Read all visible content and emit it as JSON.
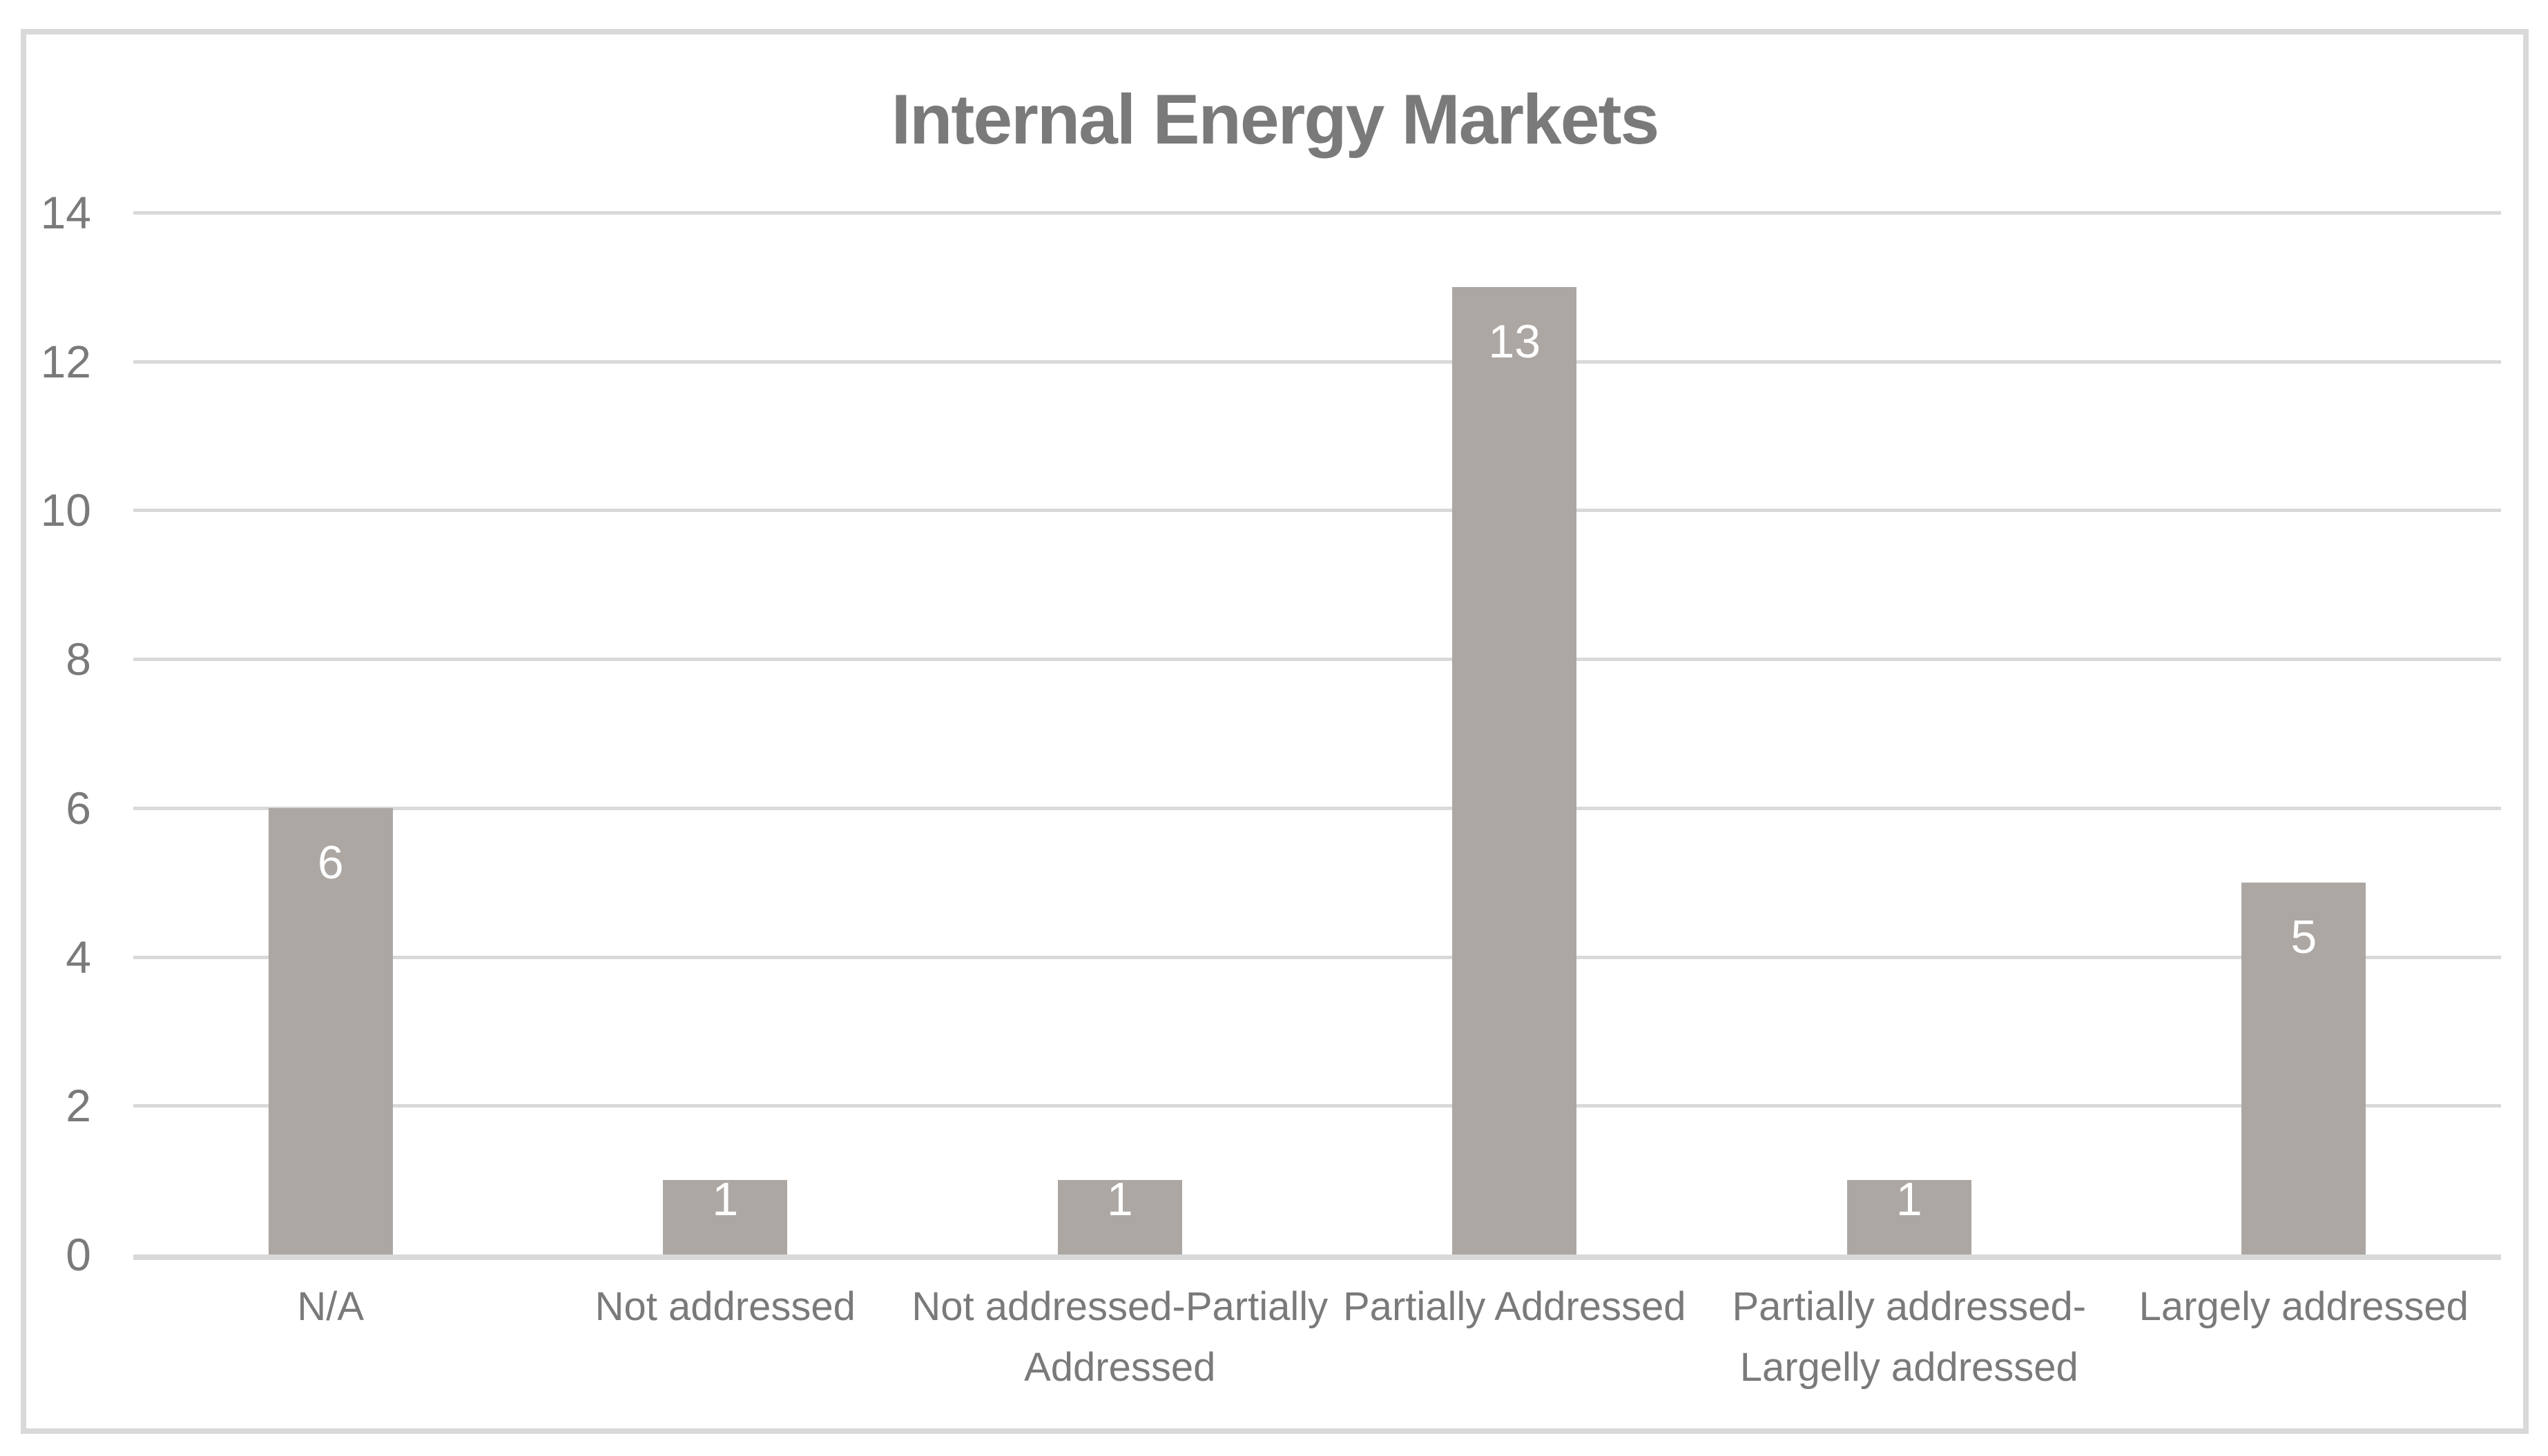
{
  "chart_data": {
    "type": "bar",
    "title": "Internal Energy Markets",
    "categories": [
      "N/A",
      "Not addressed",
      "Not addressed-Partially\nAddressed",
      "Partially Addressed",
      "Partially addressed-\nLargelly addressed",
      "Largely addressed"
    ],
    "values": [
      6,
      1,
      1,
      13,
      1,
      5
    ],
    "data_labels": [
      "6",
      "1",
      "1",
      "13",
      "1",
      "5"
    ],
    "yticks": [
      0,
      2,
      4,
      6,
      8,
      10,
      12,
      14
    ],
    "ylim": [
      0,
      14
    ],
    "xlabel": "",
    "ylabel": "",
    "legend": "none",
    "grid": "horizontal",
    "colors": {
      "bar": "#aca7a3",
      "grid": "#d9d9d9",
      "axis_line": "#d9d9d9",
      "text": "#7a7a7a",
      "data_label": "#ffffff",
      "frame_border": "#d9d9d9",
      "background": "#ffffff"
    }
  }
}
